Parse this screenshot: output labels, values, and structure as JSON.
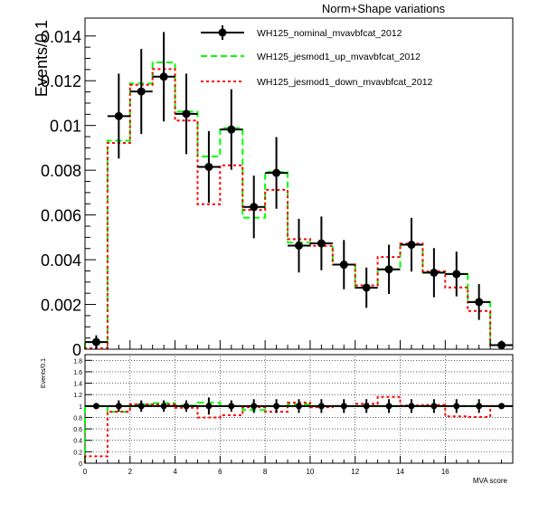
{
  "chart_data": [
    {
      "panel": "main",
      "type": "step-with-points",
      "title": "Norm+Shape variations",
      "ylabel": "Events/0.1",
      "xlim": [
        0,
        19
      ],
      "ylim": [
        0,
        0.0148
      ],
      "bin_edges": [
        0,
        1,
        2,
        3,
        4,
        5,
        6,
        7,
        8,
        9,
        10,
        11,
        12,
        13,
        14,
        15,
        16,
        17,
        18,
        19
      ],
      "y_tick_labels": [
        "0",
        "0.002",
        "0.004",
        "0.006",
        "0.008",
        "0.01",
        "0.012",
        "0.014"
      ],
      "y_ticks": [
        0,
        0.002,
        0.004,
        0.006,
        0.008,
        0.01,
        0.012,
        0.014
      ],
      "series": [
        {
          "name": "WH125_nominal_mvavbfcat_2012",
          "color": "#000000",
          "style": "points",
          "values": [
            0.00032,
            0.01042,
            0.01152,
            0.01218,
            0.01052,
            0.00815,
            0.00982,
            0.00636,
            0.00788,
            0.00463,
            0.00473,
            0.00378,
            0.00275,
            0.00357,
            0.00467,
            0.00342,
            0.00336,
            0.00211,
            0.00018
          ],
          "errors": [
            0.0003,
            0.0019,
            0.0019,
            0.002,
            0.0018,
            0.0016,
            0.0018,
            0.0014,
            0.0016,
            0.0012,
            0.0012,
            0.0011,
            0.0009,
            0.0011,
            0.0012,
            0.0011,
            0.001,
            0.0008,
            0.0002
          ]
        },
        {
          "name": "WH125_jesmod1_up_mvavbfcat_2012",
          "color": "#00ff00",
          "style": "dashed",
          "values": [
            0.00032,
            0.00932,
            0.01188,
            0.01282,
            0.01062,
            0.00862,
            0.00988,
            0.00588,
            0.00792,
            0.00477,
            0.00473,
            0.00378,
            0.00275,
            0.00357,
            0.00467,
            0.00342,
            0.00336,
            0.00211,
            0.00018
          ]
        },
        {
          "name": "WH125_jesmod1_down_mvavbfcat_2012",
          "color": "#ff0000",
          "style": "dotted",
          "values": [
            4e-05,
            0.00922,
            0.01182,
            0.01252,
            0.01022,
            0.00648,
            0.00822,
            0.00622,
            0.00712,
            0.00492,
            0.00462,
            0.00378,
            0.00285,
            0.00412,
            0.00472,
            0.00348,
            0.00276,
            0.00171,
            0.00018
          ]
        }
      ]
    },
    {
      "panel": "ratio",
      "type": "step-with-points",
      "ylabel": "Events/0.1",
      "xlabel": "MVA score",
      "xlim": [
        0,
        19
      ],
      "ylim": [
        0,
        1.9
      ],
      "grid": true,
      "x_ticks": [
        0,
        2,
        4,
        6,
        8,
        10,
        12,
        14,
        16
      ],
      "x_tick_labels": [
        "0",
        "2",
        "4",
        "6",
        "8",
        "10",
        "12",
        "14",
        "16"
      ],
      "y_ticks": [
        0,
        0.2,
        0.4,
        0.6,
        0.8,
        1,
        1.2,
        1.4,
        1.6,
        1.8
      ],
      "y_tick_labels": [
        "0",
        "0.2",
        "0.4",
        "0.6",
        "0.8",
        "1",
        "1.2",
        "1.4",
        "1.6",
        "1.8"
      ],
      "series": [
        {
          "name": "nominal",
          "color": "#000000",
          "style": "points",
          "values": [
            1,
            1,
            1,
            1,
            1,
            1,
            1,
            1,
            1,
            1,
            1,
            1,
            1,
            1,
            1,
            1,
            1,
            1,
            1
          ],
          "errors": [
            0.05,
            0.1,
            0.1,
            0.1,
            0.1,
            0.15,
            0.1,
            0.12,
            0.12,
            0.12,
            0.12,
            0.12,
            0.12,
            0.12,
            0.12,
            0.12,
            0.12,
            0.12,
            0.05
          ]
        },
        {
          "name": "up",
          "color": "#00ff00",
          "style": "dashed",
          "values": [
            1.0,
            0.9,
            1.03,
            1.05,
            1.01,
            1.06,
            1.0,
            0.93,
            1.0,
            1.03,
            1.0,
            1.0,
            1.0,
            1.0,
            1.0,
            1.0,
            1.0,
            1.0,
            1.0
          ]
        },
        {
          "name": "down",
          "color": "#ff0000",
          "style": "dotted",
          "values": [
            0.12,
            0.9,
            1.03,
            1.03,
            0.97,
            0.8,
            0.84,
            0.98,
            0.9,
            1.06,
            0.98,
            1.0,
            1.04,
            1.16,
            1.01,
            1.02,
            0.82,
            0.81,
            1.0
          ]
        }
      ]
    }
  ]
}
